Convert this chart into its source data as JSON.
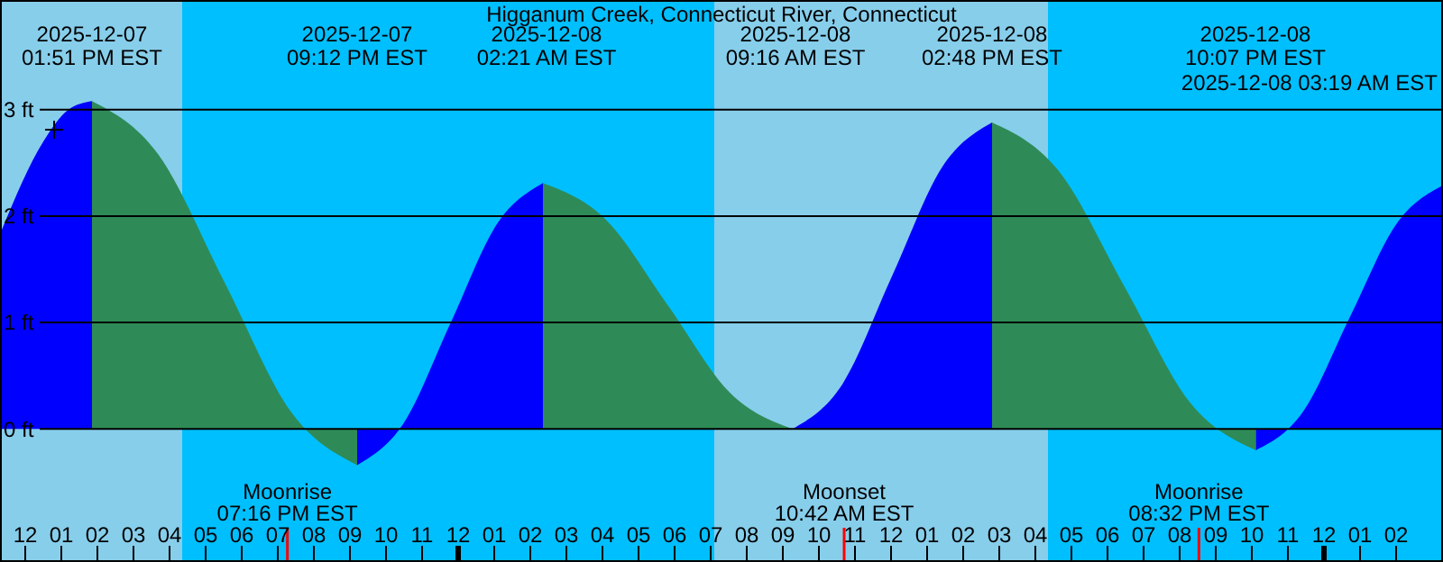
{
  "chart_data": {
    "type": "area",
    "title": "Higganum Creek, Connecticut River, Connecticut",
    "xlim": [
      "2025-12-07T11:18",
      "2025-12-09T03:18"
    ],
    "ylim": [
      -1.25,
      4.03
    ],
    "xticks": [
      {
        "value": "2025-12-07T12:00",
        "label": "12"
      },
      {
        "value": "2025-12-07T13:00",
        "label": "01"
      },
      {
        "value": "2025-12-07T14:00",
        "label": "02"
      },
      {
        "value": "2025-12-07T15:00",
        "label": "03"
      },
      {
        "value": "2025-12-07T16:00",
        "label": "04"
      },
      {
        "value": "2025-12-07T17:00",
        "label": "05"
      },
      {
        "value": "2025-12-07T18:00",
        "label": "06"
      },
      {
        "value": "2025-12-07T19:00",
        "label": "07"
      },
      {
        "value": "2025-12-07T20:00",
        "label": "08"
      },
      {
        "value": "2025-12-07T21:00",
        "label": "09"
      },
      {
        "value": "2025-12-07T22:00",
        "label": "10"
      },
      {
        "value": "2025-12-07T23:00",
        "label": "11"
      },
      {
        "value": "2025-12-08T00:00",
        "label": "12"
      },
      {
        "value": "2025-12-08T01:00",
        "label": "01"
      },
      {
        "value": "2025-12-08T02:00",
        "label": "02"
      },
      {
        "value": "2025-12-08T03:00",
        "label": "03"
      },
      {
        "value": "2025-12-08T04:00",
        "label": "04"
      },
      {
        "value": "2025-12-08T05:00",
        "label": "05"
      },
      {
        "value": "2025-12-08T06:00",
        "label": "06"
      },
      {
        "value": "2025-12-08T07:00",
        "label": "07"
      },
      {
        "value": "2025-12-08T08:00",
        "label": "08"
      },
      {
        "value": "2025-12-08T09:00",
        "label": "09"
      },
      {
        "value": "2025-12-08T10:00",
        "label": "10"
      },
      {
        "value": "2025-12-08T11:00",
        "label": "11"
      },
      {
        "value": "2025-12-08T12:00",
        "label": "12"
      },
      {
        "value": "2025-12-08T13:00",
        "label": "01"
      },
      {
        "value": "2025-12-08T14:00",
        "label": "02"
      },
      {
        "value": "2025-12-08T15:00",
        "label": "03"
      },
      {
        "value": "2025-12-08T16:00",
        "label": "04"
      },
      {
        "value": "2025-12-08T17:00",
        "label": "05"
      },
      {
        "value": "2025-12-08T18:00",
        "label": "06"
      },
      {
        "value": "2025-12-08T19:00",
        "label": "07"
      },
      {
        "value": "2025-12-08T20:00",
        "label": "08"
      },
      {
        "value": "2025-12-08T21:00",
        "label": "09"
      },
      {
        "value": "2025-12-08T22:00",
        "label": "10"
      },
      {
        "value": "2025-12-08T23:00",
        "label": "11"
      },
      {
        "value": "2025-12-09T00:00",
        "label": "12"
      },
      {
        "value": "2025-12-09T01:00",
        "label": "01"
      },
      {
        "value": "2025-12-09T02:00",
        "label": "02"
      }
    ],
    "yticks": [
      {
        "value": 0,
        "label": "0 ft"
      },
      {
        "value": 1,
        "label": "1 ft"
      },
      {
        "value": 2,
        "label": "2 ft"
      },
      {
        "value": 3,
        "label": "3 ft"
      }
    ],
    "grid": "y",
    "series": [
      {
        "type": "area",
        "color": "#0000ff",
        "values": [
          1.83,
          2.7,
          3.0,
          3.08,
          null,
          null,
          null,
          null,
          null,
          null,
          null,
          null,
          null,
          null,
          null,
          null,
          null,
          null,
          null,
          null,
          null,
          null,
          null,
          null,
          null,
          null,
          null,
          null
        ]
      },
      {
        "type": "area",
        "color": "#2e8b57",
        "values": [
          null,
          null,
          null,
          3.08,
          2.58,
          1.37,
          0.16,
          -0.34,
          null,
          null,
          null,
          null,
          null,
          null,
          null,
          null,
          null,
          null,
          null,
          null,
          null,
          null,
          null,
          null,
          null,
          null,
          null,
          null
        ]
      },
      {
        "type": "area",
        "color": "#0000ff",
        "values": [
          null,
          null,
          null,
          null,
          null,
          null,
          null,
          -0.34,
          0.05,
          0.99,
          1.92,
          2.31,
          null,
          null,
          null,
          null,
          null,
          null,
          null,
          null,
          null,
          null,
          null,
          null,
          null,
          null,
          null,
          null
        ]
      },
      {
        "type": "area",
        "color": "#2e8b57",
        "values": [
          null,
          null,
          null,
          null,
          null,
          null,
          null,
          null,
          null,
          null,
          null,
          2.31,
          1.97,
          1.16,
          0.34,
          0.0,
          null,
          null,
          null,
          null,
          null,
          null,
          null,
          null,
          null,
          null,
          null,
          null
        ]
      },
      {
        "type": "area",
        "color": "#0000ff",
        "values": [
          null,
          null,
          null,
          null,
          null,
          null,
          null,
          null,
          null,
          null,
          null,
          null,
          null,
          null,
          null,
          0.0,
          0.42,
          1.44,
          2.46,
          2.88,
          null,
          null,
          null,
          null,
          null,
          null,
          null,
          null
        ]
      },
      {
        "type": "area",
        "color": "#2e8b57",
        "values": [
          null,
          null,
          null,
          null,
          null,
          null,
          null,
          null,
          null,
          null,
          null,
          null,
          null,
          null,
          null,
          null,
          null,
          null,
          null,
          2.88,
          2.43,
          1.34,
          0.25,
          -0.2,
          null,
          null,
          null,
          null
        ]
      },
      {
        "type": "area",
        "color": "#0000ff",
        "values": [
          null,
          null,
          null,
          null,
          null,
          null,
          null,
          null,
          null,
          null,
          null,
          null,
          null,
          null,
          null,
          null,
          null,
          null,
          null,
          null,
          null,
          null,
          null,
          -0.2,
          0.16,
          1.05,
          1.93,
          2.29
        ]
      }
    ],
    "x": [
      "2025-12-07T11:18",
      "2025-12-07T12:30",
      "2025-12-07T13:12",
      "2025-12-07T13:51",
      "2025-12-07T15:41",
      "2025-12-07T17:32",
      "2025-12-07T19:22",
      "2025-12-07T21:12",
      "2025-12-07T22:29",
      "2025-12-07T23:47",
      "2025-12-08T01:04",
      "2025-12-08T02:21",
      "2025-12-08T04:05",
      "2025-12-08T05:49",
      "2025-12-08T07:32",
      "2025-12-08T09:16",
      "2025-12-08T10:39",
      "2025-12-08T12:02",
      "2025-12-08T13:25",
      "2025-12-08T14:48",
      "2025-12-08T16:38",
      "2025-12-08T18:28",
      "2025-12-08T20:17",
      "2025-12-08T22:07",
      "2025-12-08T23:25",
      "2025-12-09T00:43",
      "2025-12-09T02:01",
      "2025-12-09T03:18"
    ],
    "bands": [
      {
        "axis": "x",
        "from": "2025-12-07T11:18",
        "to": "2025-12-07T16:21",
        "color": "#87ceeb"
      },
      {
        "axis": "x",
        "from": "2025-12-07T16:21",
        "to": "2025-12-08T07:06",
        "color": "#00bfff"
      },
      {
        "axis": "x",
        "from": "2025-12-08T07:06",
        "to": "2025-12-08T16:21",
        "color": "#87ceeb"
      },
      {
        "axis": "x",
        "from": "2025-12-08T16:21",
        "to": "2025-12-09T03:18",
        "color": "#00bfff"
      }
    ],
    "ref_lines": [
      {
        "axis": "x",
        "value": "2025-12-07T19:16",
        "label": "Moonrise 07:16 PM EST",
        "color": "#ff0000"
      },
      {
        "axis": "x",
        "value": "2025-12-08T10:42",
        "label": "Moonset 10:42 AM EST",
        "color": "#ff0000"
      },
      {
        "axis": "x",
        "value": "2025-12-08T20:32",
        "label": "Moonrise 08:32 PM EST",
        "color": "#ff0000"
      }
    ],
    "annotations": [
      "2025-12-07 01:51 PM EST",
      "2025-12-07 09:12 PM EST",
      "2025-12-08 02:21 AM EST",
      "2025-12-08 09:16 AM EST",
      "2025-12-08 02:48 PM EST",
      "2025-12-08 10:07 PM EST",
      "2025-12-08 03:19 AM EST"
    ]
  }
}
